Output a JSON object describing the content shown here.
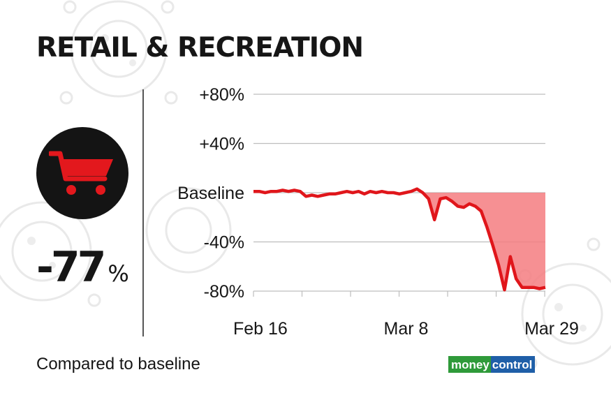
{
  "title": "RETAIL & RECREATION",
  "change": {
    "value": "-77",
    "unit": "%"
  },
  "caption": "Compared to baseline",
  "logo": {
    "part1": "money",
    "part2": "control"
  },
  "icon": "shopping-cart-icon",
  "colors": {
    "line": "#e0161b",
    "fill": "#f47d80",
    "circle": "#141414",
    "cart": "#e3181d"
  },
  "chart_data": {
    "type": "line",
    "title": "RETAIL & RECREATION",
    "xlabel": "",
    "ylabel": "",
    "y_ticks": [
      {
        "label": "+80%",
        "value": 80
      },
      {
        "label": "+40%",
        "value": 40
      },
      {
        "label": "Baseline",
        "value": 0
      },
      {
        "label": "-40%",
        "value": -40
      },
      {
        "label": "-80%",
        "value": -80
      }
    ],
    "x_ticks": [
      {
        "label": "Feb 16",
        "day": 0
      },
      {
        "label": "Mar 8",
        "day": 21
      },
      {
        "label": "Mar 29",
        "day": 42
      }
    ],
    "ylim": [
      -80,
      80
    ],
    "grid": true,
    "shaded_below_baseline": true,
    "series": [
      {
        "values": [
          {
            "x": "Feb 15",
            "y": 1
          },
          {
            "x": "Feb 16",
            "y": 1
          },
          {
            "x": "Feb 17",
            "y": 0
          },
          {
            "x": "Feb 18",
            "y": 1
          },
          {
            "x": "Feb 19",
            "y": 1
          },
          {
            "x": "Feb 20",
            "y": 2
          },
          {
            "x": "Feb 21",
            "y": 1
          },
          {
            "x": "Feb 22",
            "y": 2
          },
          {
            "x": "Feb 23",
            "y": 1
          },
          {
            "x": "Feb 24",
            "y": -3
          },
          {
            "x": "Feb 25",
            "y": -2
          },
          {
            "x": "Feb 26",
            "y": -3
          },
          {
            "x": "Feb 27",
            "y": -2
          },
          {
            "x": "Feb 28",
            "y": -1
          },
          {
            "x": "Feb 29",
            "y": -1
          },
          {
            "x": "Mar 1",
            "y": 0
          },
          {
            "x": "Mar 2",
            "y": 1
          },
          {
            "x": "Mar 3",
            "y": 0
          },
          {
            "x": "Mar 4",
            "y": 1
          },
          {
            "x": "Mar 5",
            "y": -1
          },
          {
            "x": "Mar 6",
            "y": 1
          },
          {
            "x": "Mar 7",
            "y": 0
          },
          {
            "x": "Mar 8",
            "y": 1
          },
          {
            "x": "Mar 9",
            "y": 0
          },
          {
            "x": "Mar 10",
            "y": 0
          },
          {
            "x": "Mar 11",
            "y": -1
          },
          {
            "x": "Mar 12",
            "y": 0
          },
          {
            "x": "Mar 13",
            "y": 1
          },
          {
            "x": "Mar 14",
            "y": 3
          },
          {
            "x": "Mar 15",
            "y": 0
          },
          {
            "x": "Mar 16",
            "y": -5
          },
          {
            "x": "Mar 17",
            "y": -22
          },
          {
            "x": "Mar 18",
            "y": -5
          },
          {
            "x": "Mar 19",
            "y": -4
          },
          {
            "x": "Mar 20",
            "y": -7
          },
          {
            "x": "Mar 21",
            "y": -11
          },
          {
            "x": "Mar 22",
            "y": -12
          },
          {
            "x": "Mar 23",
            "y": -9
          },
          {
            "x": "Mar 24",
            "y": -11
          },
          {
            "x": "Mar 25",
            "y": -15
          },
          {
            "x": "Mar 26",
            "y": -28
          },
          {
            "x": "Mar 27",
            "y": -43
          },
          {
            "x": "Mar 28",
            "y": -59
          },
          {
            "x": "Mar 29",
            "y": -79
          },
          {
            "x": "Mar 30",
            "y": -52
          },
          {
            "x": "Mar 31",
            "y": -70
          },
          {
            "x": "Apr 1",
            "y": -77
          },
          {
            "x": "Apr 2",
            "y": -77
          },
          {
            "x": "Apr 3",
            "y": -77
          },
          {
            "x": "Apr 4",
            "y": -78
          },
          {
            "x": "Apr 5",
            "y": -77
          }
        ]
      }
    ]
  }
}
